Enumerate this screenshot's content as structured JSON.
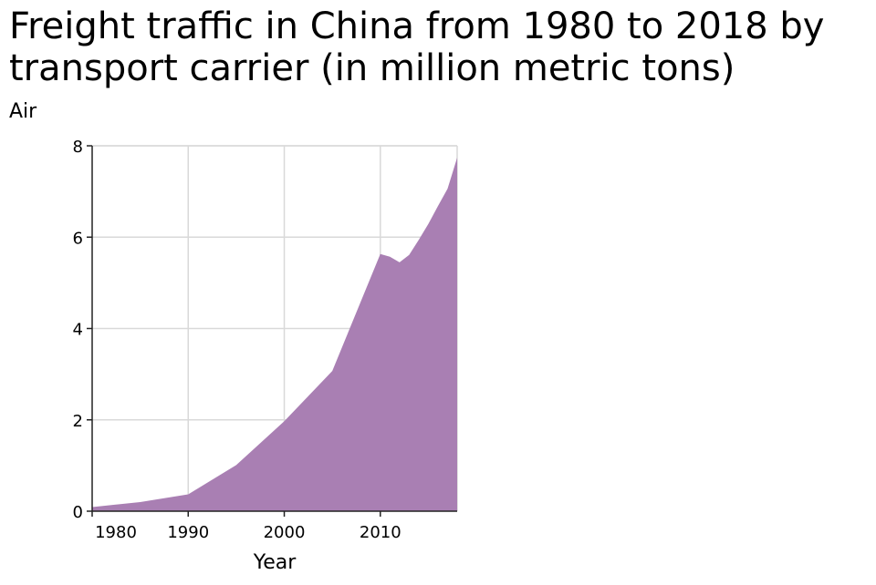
{
  "title": "Freight traffic in China from 1980 to 2018 by transport carrier (in million metric tons)",
  "chart_data": {
    "type": "area",
    "title": "Freight traffic in China from 1980 to 2018 by transport carrier (in million metric tons)",
    "xlabel": "Year",
    "ylabel": "Air",
    "xlim": [
      1980,
      2018
    ],
    "ylim": [
      0,
      8
    ],
    "x_ticks": [
      1980,
      1990,
      2000,
      2010
    ],
    "y_ticks": [
      0,
      2,
      4,
      6,
      8
    ],
    "grid": true,
    "fill_color": "#a97fb3",
    "series": [
      {
        "x": [
          1980,
          1985,
          1990,
          1995,
          2000,
          2005,
          2010,
          2011,
          2012,
          2013,
          2014,
          2015,
          2016,
          2017,
          2018
        ],
        "values": [
          0.09,
          0.2,
          0.37,
          1.01,
          1.97,
          3.07,
          5.63,
          5.57,
          5.45,
          5.61,
          5.94,
          6.29,
          6.68,
          7.06,
          7.74
        ]
      }
    ]
  }
}
